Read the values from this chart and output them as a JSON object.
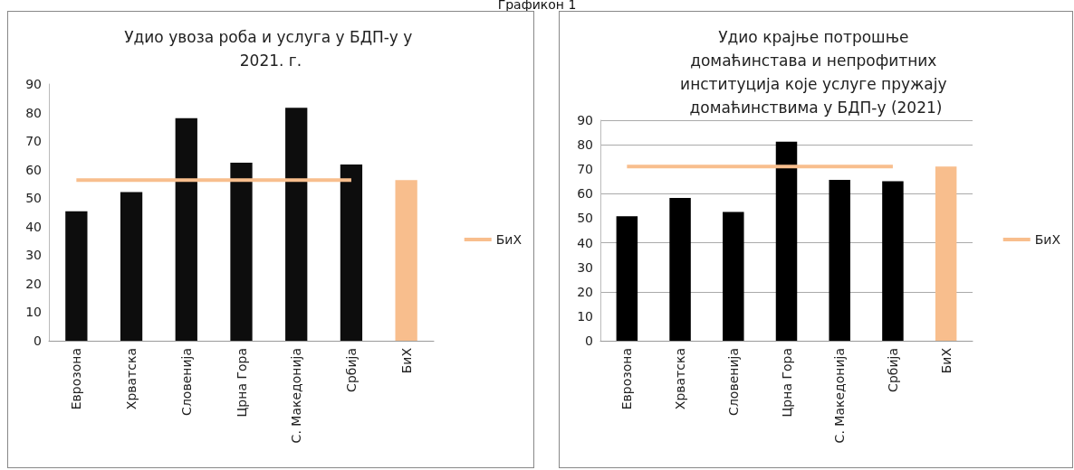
{
  "chart_data": [
    {
      "type": "bar",
      "title": "Удио увоза роба и услуга у БДП-у у 2021. г.",
      "annotations": [
        "Графикон 1"
      ],
      "categories": [
        "Еврозона",
        "Хрватска",
        "Словенија",
        "Црна Гора",
        "С. Македонија",
        "Србија",
        "БиХ"
      ],
      "legend": "right",
      "ylim": [
        0,
        90
      ],
      "yticks": [
        0,
        10,
        20,
        30,
        40,
        50,
        60,
        70,
        80,
        90
      ],
      "series": [
        {
          "colors": [
            "#0d0d0d",
            "#0d0d0d",
            "#0d0d0d",
            "#0d0d0d",
            "#0d0d0d",
            "#0d0d0d",
            "#f8be8d"
          ],
          "values": [
            45.4,
            52.1,
            78,
            62.4,
            81.7,
            61.8,
            56.3
          ]
        },
        {
          "type": "line",
          "name": "БиХ",
          "color": "#f8be8d",
          "values": [
            56.3,
            56.3,
            56.3,
            56.3,
            56.3,
            56.3,
            null
          ]
        }
      ]
    },
    {
      "type": "bar",
      "title": "Удио крајње потрошње домаћинстава и непрофитних институција које услуге пружају домаћинствима у БДП-у (2021)",
      "categories": [
        "Еврозона",
        "Хрватска",
        "Словенија",
        "Црна Гора",
        "С. Македонија",
        "Србија",
        "БиХ"
      ],
      "legend": "right",
      "grid": "y",
      "ylim": [
        0,
        90
      ],
      "yticks": [
        0,
        10,
        20,
        30,
        40,
        50,
        60,
        70,
        80,
        90
      ],
      "series": [
        {
          "colors": [
            "#000000",
            "#000000",
            "#000000",
            "#000000",
            "#000000",
            "#000000",
            "#f8be8d"
          ],
          "values": [
            50.8,
            58.3,
            52.6,
            81.2,
            65.7,
            65.1,
            71.1
          ]
        },
        {
          "type": "line",
          "name": "БиХ",
          "color": "#f8be8d",
          "values": [
            71.1,
            71.1,
            71.1,
            71.1,
            71.1,
            71.1,
            null
          ]
        }
      ]
    }
  ]
}
